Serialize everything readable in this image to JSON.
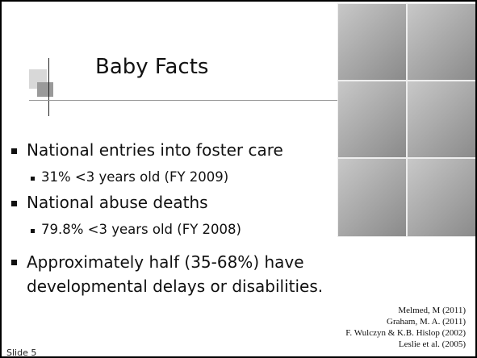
{
  "title": "Baby Facts",
  "bullets": [
    {
      "text": "National entries into foster care",
      "sub": [
        "31% <3 years old (FY 2009)"
      ]
    },
    {
      "text": "National abuse deaths",
      "sub": [
        "79.8% <3 years old (FY 2008)"
      ]
    },
    {
      "text": "Approximately half (35-68%) have developmental delays or disabilities."
    }
  ],
  "references": [
    "Melmed, M (2011)",
    "Graham, M. A. (2011)",
    "F. Wulczyn & K.B. Hislop (2002)",
    "Leslie et al. (2005)"
  ],
  "footer": "Slide 5"
}
